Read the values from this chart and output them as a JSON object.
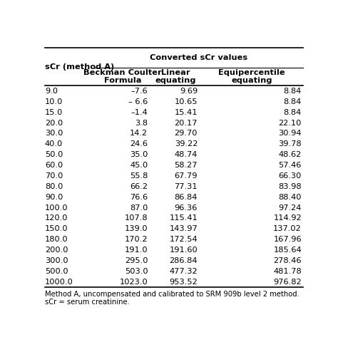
{
  "col0_header": "sCr (method A)",
  "col_group_header": "Converted sCr values",
  "col1_header": "Beckman Coulter\nFormula",
  "col2_header": "Linear\nequating",
  "col3_header": "Equipercentile\nequating",
  "rows": [
    [
      "9.0",
      "–7.6",
      "9.69",
      "8.84"
    ],
    [
      "10.0",
      "– 6.6",
      "10.65",
      "8.84"
    ],
    [
      "15.0",
      "–1.4",
      "15.41",
      "8.84"
    ],
    [
      "20.0",
      "3.8",
      "20.17",
      "22.10"
    ],
    [
      "30.0",
      "14.2",
      "29.70",
      "30.94"
    ],
    [
      "40.0",
      "24.6",
      "39.22",
      "39.78"
    ],
    [
      "50.0",
      "35.0",
      "48.74",
      "48.62"
    ],
    [
      "60.0",
      "45.0",
      "58.27",
      "57.46"
    ],
    [
      "70.0",
      "55.8",
      "67.79",
      "66.30"
    ],
    [
      "80.0",
      "66.2",
      "77.31",
      "83.98"
    ],
    [
      "90.0",
      "76.6",
      "86.84",
      "88.40"
    ],
    [
      "100.0",
      "87.0",
      "96.36",
      "97.24"
    ],
    [
      "120.0",
      "107.8",
      "115.41",
      "114.92"
    ],
    [
      "150.0",
      "139.0",
      "143.97",
      "137.02"
    ],
    [
      "180.0",
      "170.2",
      "172.54",
      "167.96"
    ],
    [
      "200.0",
      "191.0",
      "191.60",
      "185.64"
    ],
    [
      "300.0",
      "295.0",
      "286.84",
      "278.46"
    ],
    [
      "500.0",
      "503.0",
      "477.32",
      "481.78"
    ],
    [
      "1000.0",
      "1023.0",
      "953.52",
      "976.82"
    ]
  ],
  "footnote1": "Method A, uncompensated and calibrated to SRM 909b level 2 method.",
  "footnote2": "sCr = serum creatinine.",
  "bg_color": "#ffffff",
  "header_color": "#000000",
  "line_color": "#000000",
  "font_size": 8.2,
  "header_font_size": 8.2
}
